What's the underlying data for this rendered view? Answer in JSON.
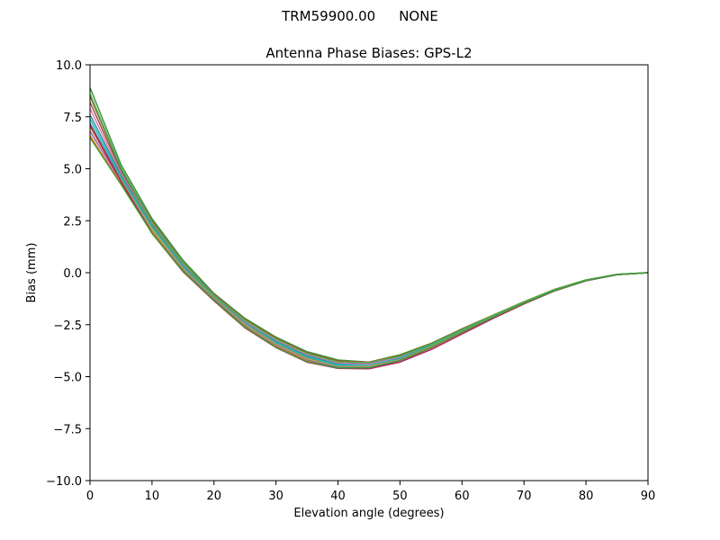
{
  "figure": {
    "antenna": "TRM59900.00",
    "radome": "NONE"
  },
  "chart_data": {
    "type": "line",
    "title": "Antenna Phase Biases: GPS-L2",
    "xlabel": "Elevation angle (degrees)",
    "ylabel": "Bias (mm)",
    "xlim": [
      0,
      90
    ],
    "ylim": [
      -10,
      10
    ],
    "x_ticks": [
      "0",
      "10",
      "20",
      "30",
      "40",
      "50",
      "60",
      "70",
      "80",
      "90"
    ],
    "y_ticks": [
      "10.0",
      "7.5",
      "5.0",
      "2.5",
      "0.0",
      "−2.5",
      "−5.0",
      "−7.5",
      "−10.0"
    ],
    "grid": false,
    "legend": "none",
    "x": [
      0,
      5,
      10,
      15,
      20,
      25,
      30,
      35,
      40,
      45,
      50,
      55,
      60,
      65,
      70,
      75,
      80,
      85,
      90
    ],
    "series": [
      {
        "color": "#2ca02c",
        "values": [
          8.9,
          5.2,
          2.6,
          0.6,
          -1.0,
          -2.2,
          -3.1,
          -3.8,
          -4.2,
          -4.3,
          -3.95,
          -3.4,
          -2.7,
          -2.05,
          -1.4,
          -0.8,
          -0.35,
          -0.08,
          0.0
        ]
      },
      {
        "color": "#d62728",
        "values": [
          8.5,
          5.0,
          2.5,
          0.5,
          -1.05,
          -2.25,
          -3.15,
          -3.85,
          -4.25,
          -4.3,
          -4.0,
          -3.42,
          -2.72,
          -2.05,
          -1.4,
          -0.8,
          -0.35,
          -0.08,
          0.0
        ]
      },
      {
        "color": "#8c564b",
        "values": [
          8.2,
          4.9,
          2.4,
          0.45,
          -1.1,
          -2.3,
          -3.2,
          -3.9,
          -4.3,
          -4.35,
          -4.05,
          -3.45,
          -2.75,
          -2.07,
          -1.42,
          -0.82,
          -0.36,
          -0.08,
          0.0
        ]
      },
      {
        "color": "#e377c2",
        "values": [
          7.9,
          4.8,
          2.35,
          0.4,
          -1.12,
          -2.35,
          -3.25,
          -3.95,
          -4.35,
          -4.4,
          -4.08,
          -3.48,
          -2.77,
          -2.08,
          -1.42,
          -0.82,
          -0.36,
          -0.08,
          0.0
        ]
      },
      {
        "color": "#1f9e89",
        "values": [
          7.6,
          4.7,
          2.3,
          0.35,
          -1.15,
          -2.4,
          -3.3,
          -4.0,
          -4.4,
          -4.45,
          -4.12,
          -3.5,
          -2.8,
          -2.1,
          -1.44,
          -0.83,
          -0.37,
          -0.09,
          0.0
        ]
      },
      {
        "color": "#17becf",
        "values": [
          7.4,
          4.6,
          2.2,
          0.3,
          -1.18,
          -2.42,
          -3.35,
          -4.05,
          -4.45,
          -4.45,
          -4.15,
          -3.52,
          -2.82,
          -2.12,
          -1.45,
          -0.84,
          -0.37,
          -0.09,
          0.0
        ]
      },
      {
        "color": "#7f7f7f",
        "values": [
          7.2,
          4.5,
          2.15,
          0.25,
          -1.2,
          -2.45,
          -3.4,
          -4.1,
          -4.5,
          -4.5,
          -4.18,
          -3.55,
          -2.84,
          -2.13,
          -1.46,
          -0.84,
          -0.37,
          -0.09,
          0.0
        ]
      },
      {
        "color": "#bcbd22",
        "values": [
          7.0,
          4.45,
          2.1,
          0.2,
          -1.22,
          -2.5,
          -3.45,
          -4.15,
          -4.52,
          -4.5,
          -4.2,
          -3.57,
          -2.85,
          -2.14,
          -1.46,
          -0.85,
          -0.38,
          -0.09,
          0.0
        ]
      },
      {
        "color": "#9467bd",
        "values": [
          6.8,
          4.4,
          2.0,
          0.15,
          -1.25,
          -2.55,
          -3.5,
          -4.2,
          -4.55,
          -4.55,
          -4.22,
          -3.6,
          -2.87,
          -2.15,
          -1.47,
          -0.85,
          -0.38,
          -0.09,
          0.0
        ]
      },
      {
        "color": "#ff7f0e",
        "values": [
          6.6,
          4.3,
          1.95,
          0.1,
          -1.3,
          -2.6,
          -3.55,
          -4.25,
          -4.6,
          -4.6,
          -4.25,
          -3.62,
          -2.88,
          -2.16,
          -1.48,
          -0.86,
          -0.38,
          -0.09,
          0.0
        ]
      },
      {
        "color": "#c2185b",
        "values": [
          7.1,
          4.4,
          1.9,
          0.05,
          -1.35,
          -2.65,
          -3.6,
          -4.3,
          -4.6,
          -4.62,
          -4.3,
          -3.7,
          -2.95,
          -2.2,
          -1.5,
          -0.87,
          -0.39,
          -0.1,
          0.0
        ]
      },
      {
        "color": "#4caf50",
        "values": [
          8.6,
          5.05,
          2.45,
          0.48,
          -1.08,
          -2.28,
          -3.18,
          -3.88,
          -4.28,
          -4.32,
          -4.02,
          -3.44,
          -2.74,
          -2.06,
          -1.41,
          -0.81,
          -0.35,
          -0.08,
          0.0
        ]
      },
      {
        "color": "#3a9a3a",
        "values": [
          6.5,
          4.25,
          1.9,
          0.08,
          -1.32,
          -2.62,
          -3.58,
          -4.28,
          -4.58,
          -4.58,
          -4.24,
          -3.61,
          -2.87,
          -2.15,
          -1.47,
          -0.86,
          -0.38,
          -0.09,
          0.0
        ]
      }
    ]
  }
}
